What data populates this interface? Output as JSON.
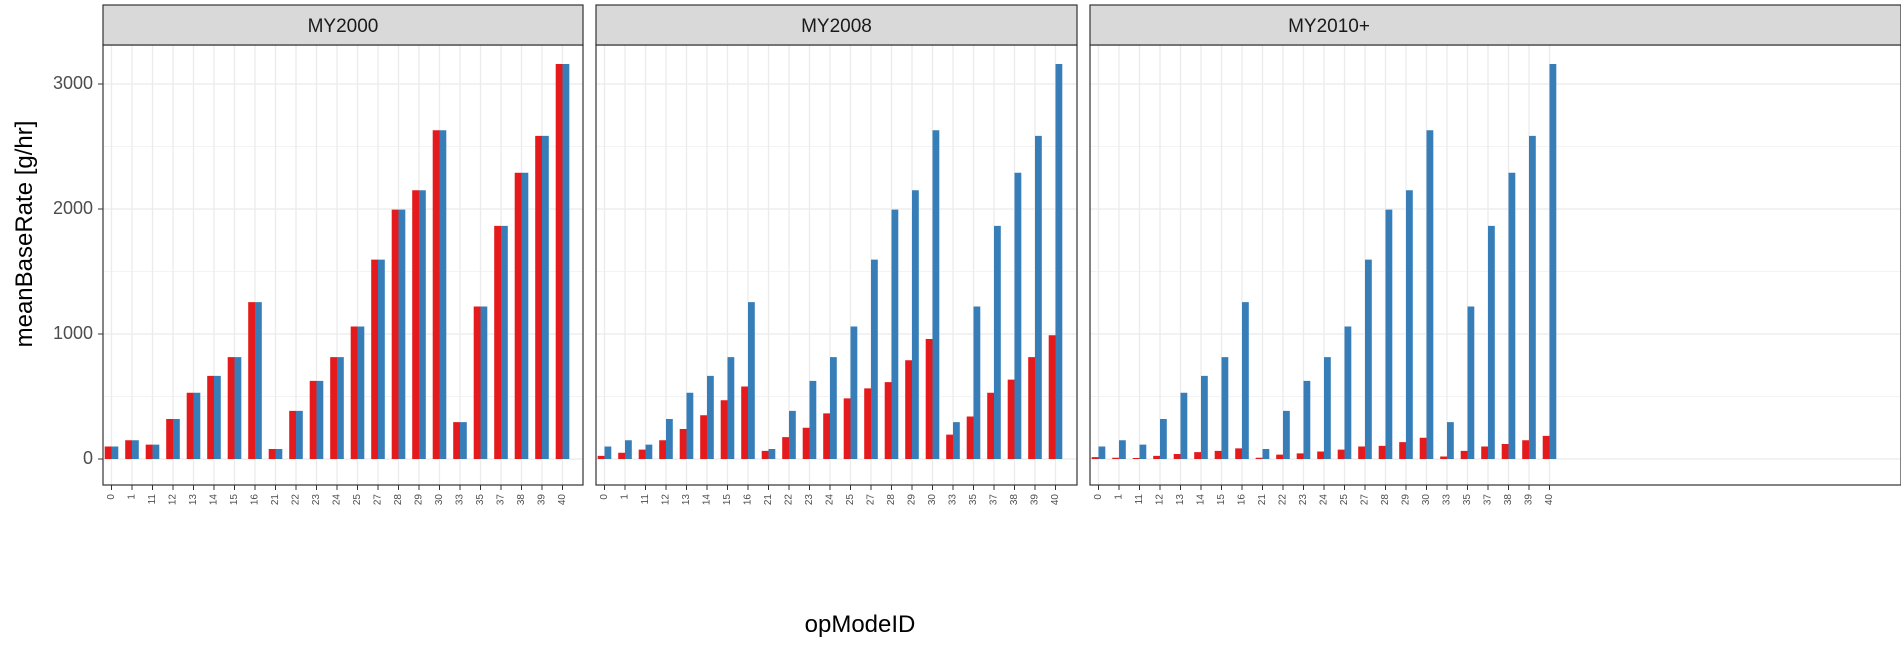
{
  "chart_data": {
    "type": "bar",
    "title": "",
    "xlabel": "opModeID",
    "ylabel": "meanBaseRate [g/hr]",
    "ylim": [
      -100,
      3450
    ],
    "yticks": [
      0,
      1000,
      2000,
      3000
    ],
    "ytick_labels": [
      "0",
      "1000",
      "2000",
      "3000"
    ],
    "grid": true,
    "legend": "none",
    "colors": {
      "series_1": "#e41a1c",
      "series_2": "#377eb8",
      "strip_bg": "#d9d9d9",
      "grid": "#ebebeb",
      "panel_border": "#333333"
    },
    "categories": [
      "0",
      "1",
      "11",
      "12",
      "13",
      "14",
      "15",
      "16",
      "21",
      "22",
      "23",
      "24",
      "25",
      "27",
      "28",
      "29",
      "30",
      "33",
      "35",
      "37",
      "38",
      "39",
      "40"
    ],
    "panels": [
      {
        "label": "MY2000",
        "series": [
          {
            "color": "#e41a1c",
            "values": [
              100,
              150,
              115,
              320,
              530,
              665,
              815,
              1255,
              80,
              385,
              625,
              815,
              1060,
              1595,
              1995,
              2150,
              2630,
              295,
              1220,
              1865,
              2290,
              2585,
              3160
            ]
          },
          {
            "color": "#377eb8",
            "values": [
              100,
              150,
              115,
              320,
              530,
              665,
              815,
              1255,
              80,
              385,
              625,
              815,
              1060,
              1595,
              1995,
              2150,
              2630,
              295,
              1220,
              1865,
              2290,
              2585,
              3160
            ]
          }
        ]
      },
      {
        "label": "MY2008",
        "series": [
          {
            "color": "#e41a1c",
            "values": [
              25,
              50,
              75,
              150,
              240,
              350,
              470,
              580,
              65,
              175,
              250,
              365,
              485,
              565,
              615,
              790,
              960,
              195,
              340,
              530,
              635,
              815,
              990
            ]
          },
          {
            "color": "#377eb8",
            "values": [
              100,
              150,
              115,
              320,
              530,
              665,
              815,
              1255,
              80,
              385,
              625,
              815,
              1060,
              1595,
              1995,
              2150,
              2630,
              295,
              1220,
              1865,
              2290,
              2585,
              3160
            ]
          }
        ]
      },
      {
        "label": "MY2010+",
        "series": [
          {
            "color": "#e41a1c",
            "values": [
              15,
              10,
              8,
              25,
              40,
              55,
              65,
              85,
              10,
              35,
              45,
              60,
              75,
              100,
              105,
              135,
              170,
              20,
              65,
              100,
              120,
              150,
              185
            ]
          },
          {
            "color": "#377eb8",
            "values": [
              100,
              150,
              115,
              320,
              530,
              665,
              815,
              1255,
              80,
              385,
              625,
              815,
              1060,
              1595,
              1995,
              2150,
              2630,
              295,
              1220,
              1865,
              2290,
              2585,
              3160
            ]
          }
        ]
      }
    ]
  }
}
